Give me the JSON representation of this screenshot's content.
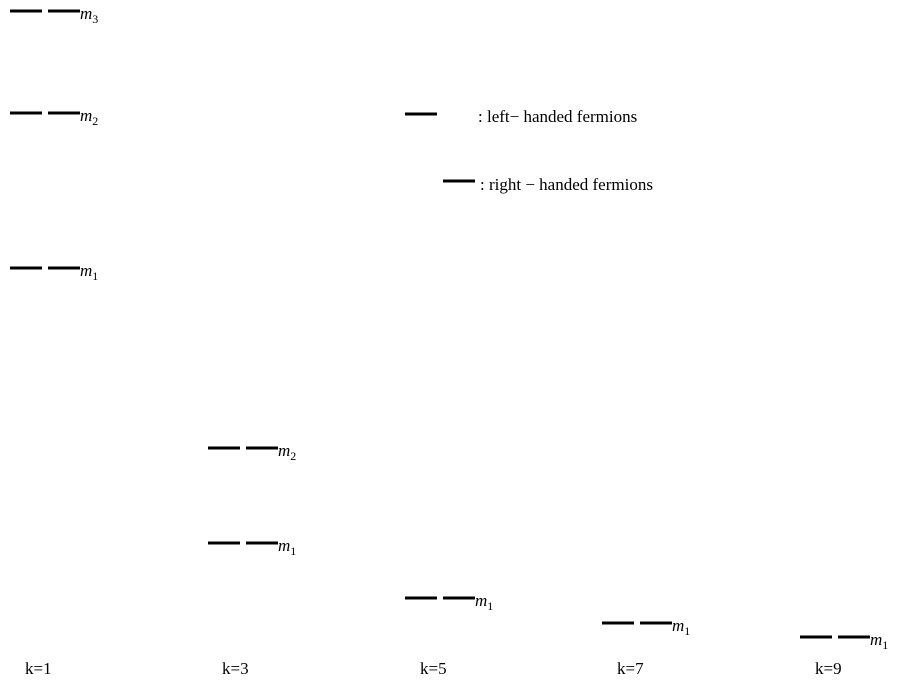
{
  "columns": [
    {
      "label": "k=1",
      "levels": [
        {
          "name": "m",
          "sub": "3"
        },
        {
          "name": "m",
          "sub": "2"
        },
        {
          "name": "m",
          "sub": "1"
        }
      ]
    },
    {
      "label": "k=3",
      "levels": [
        {
          "name": "m",
          "sub": "2"
        },
        {
          "name": "m",
          "sub": "1"
        }
      ]
    },
    {
      "label": "k=5",
      "levels": [
        {
          "name": "m",
          "sub": "1"
        }
      ]
    },
    {
      "label": "k=7",
      "levels": [
        {
          "name": "m",
          "sub": "1"
        }
      ]
    },
    {
      "label": "k=9",
      "levels": [
        {
          "name": "m",
          "sub": "1"
        }
      ]
    }
  ],
  "legend": {
    "left_handed": ": left− handed   fermions",
    "right_handed": ": right − handed   fermions"
  },
  "colors": {
    "line": "#000000",
    "background": "#ffffff"
  }
}
